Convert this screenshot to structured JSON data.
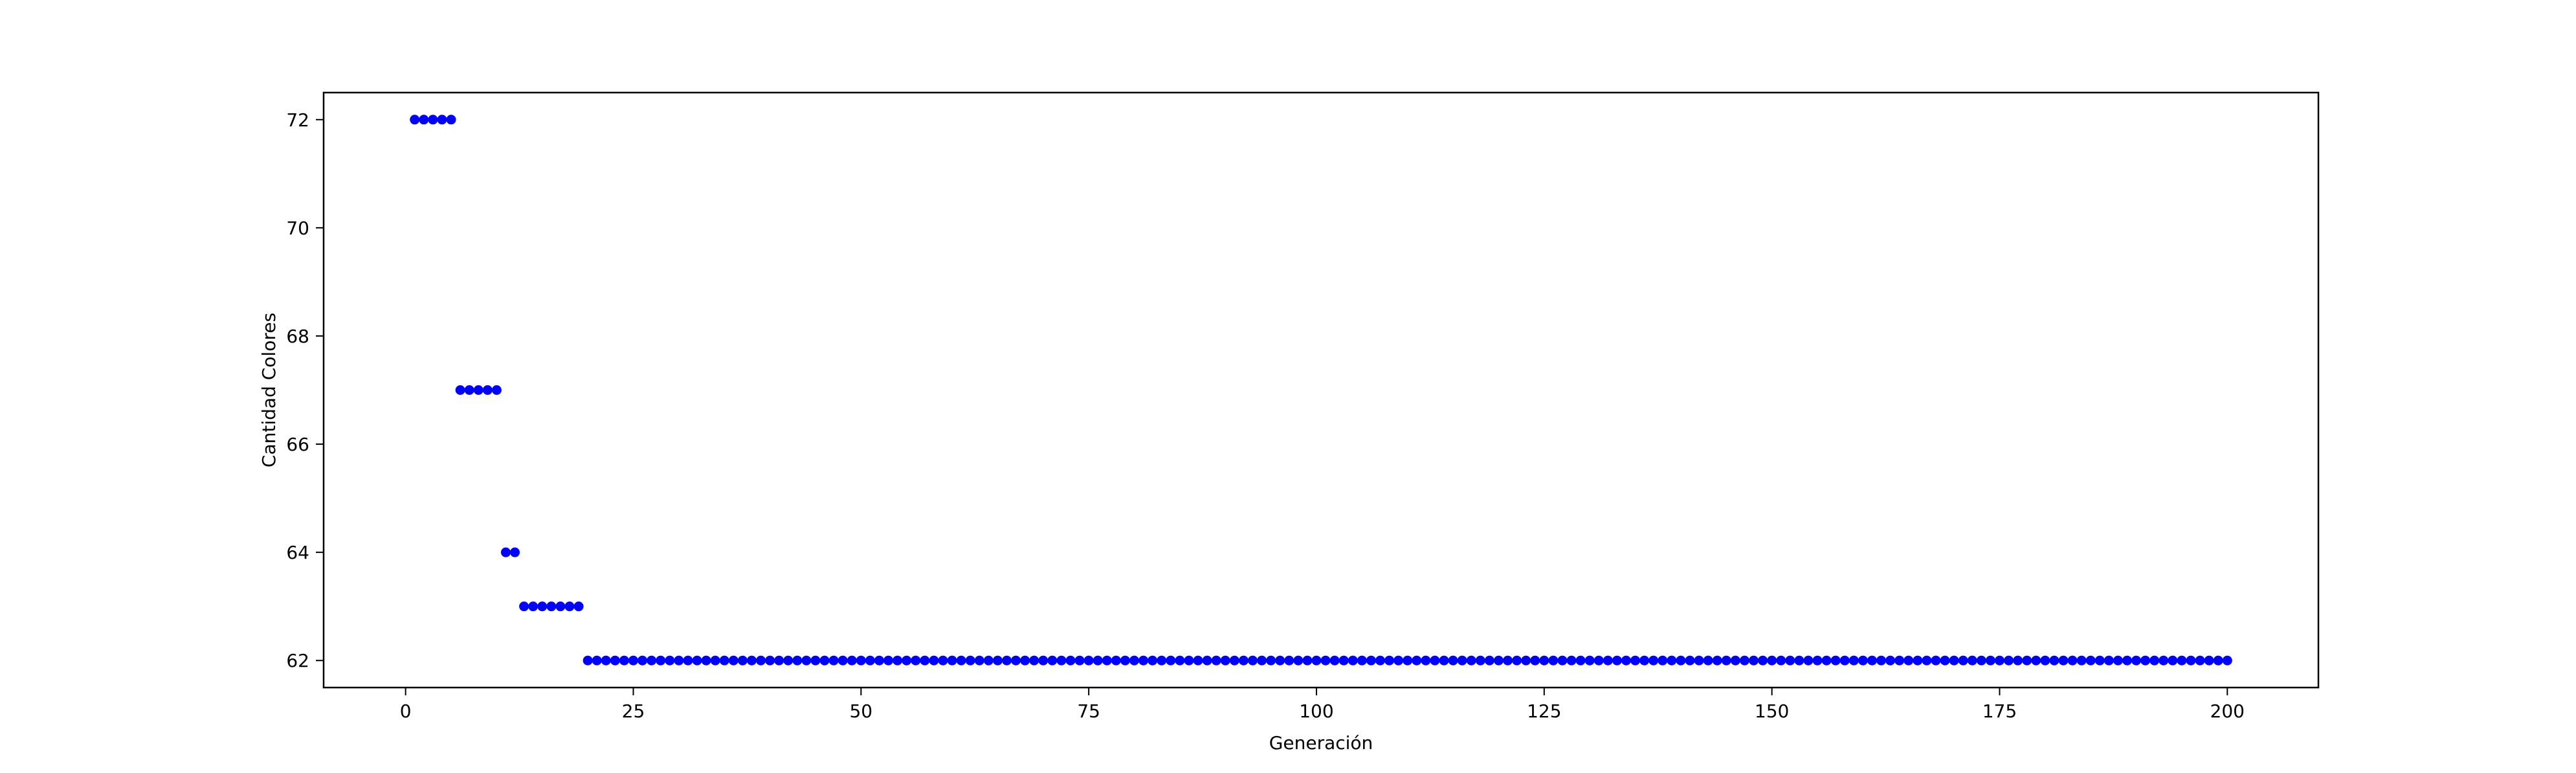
{
  "chart_data": {
    "type": "scatter",
    "title": "",
    "xlabel": "Generación",
    "ylabel": "Cantidad Colores",
    "xlim": [
      -9,
      210
    ],
    "ylim": [
      61.5,
      72.5
    ],
    "xticks": [
      0,
      25,
      50,
      75,
      100,
      125,
      150,
      175,
      200
    ],
    "yticks": [
      62,
      64,
      66,
      68,
      70,
      72
    ],
    "grid": false,
    "legend": "none",
    "marker_color": "#0000ff",
    "segments": [
      {
        "x_start": 1,
        "x_end": 5,
        "y": 72
      },
      {
        "x_start": 6,
        "x_end": 10,
        "y": 67
      },
      {
        "x_start": 11,
        "x_end": 12,
        "y": 64
      },
      {
        "x_start": 13,
        "x_end": 19,
        "y": 63
      },
      {
        "x_start": 20,
        "x_end": 200,
        "y": 62
      }
    ]
  }
}
